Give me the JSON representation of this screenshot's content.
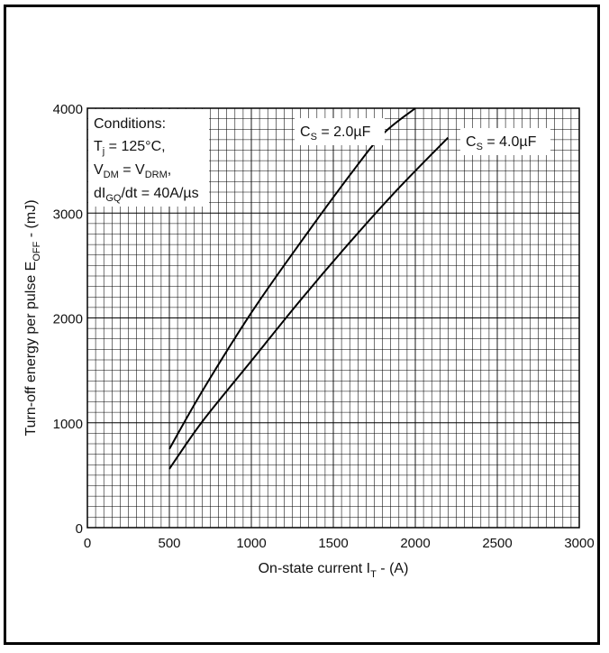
{
  "chart_data": {
    "type": "line",
    "xlabel": "On-state current I",
    "xlabel_sub": "T",
    "xlabel_unit": " - (A)",
    "ylabel": "Turn-off energy per pulse E",
    "ylabel_sub": "OFF",
    "ylabel_unit": " - (mJ)",
    "xlim": [
      0,
      3000
    ],
    "ylim": [
      0,
      4000
    ],
    "xticks": [
      0,
      500,
      1000,
      1500,
      2000,
      2500,
      3000
    ],
    "yticks": [
      0,
      1000,
      2000,
      3000,
      4000
    ],
    "grid": true,
    "series": [
      {
        "name": "C_S = 2.0µF",
        "label_main": "C",
        "label_sub": "S",
        "label_rest": " = 2.0µF",
        "x": [
          500,
          700,
          1000,
          1300,
          1600,
          1800,
          2000
        ],
        "y": [
          750,
          1300,
          2050,
          2720,
          3360,
          3750,
          4000
        ]
      },
      {
        "name": "C_S = 4.0µF",
        "label_main": "C",
        "label_sub": "S",
        "label_rest": " = 4.0µF",
        "x": [
          500,
          700,
          1000,
          1300,
          1600,
          1900,
          2200
        ],
        "y": [
          560,
          1010,
          1590,
          2170,
          2720,
          3240,
          3720
        ]
      }
    ],
    "conditions": {
      "title": "Conditions:",
      "lines": [
        {
          "main": "T",
          "sub": "j",
          "rest": " = 125°C,"
        },
        {
          "main": "V",
          "sub": "DM",
          "rest": " = V",
          "sub2": "DRM",
          "rest2": ","
        },
        {
          "main": "dI",
          "sub": "GQ",
          "rest": "/dt = 40A/µs"
        }
      ]
    }
  }
}
